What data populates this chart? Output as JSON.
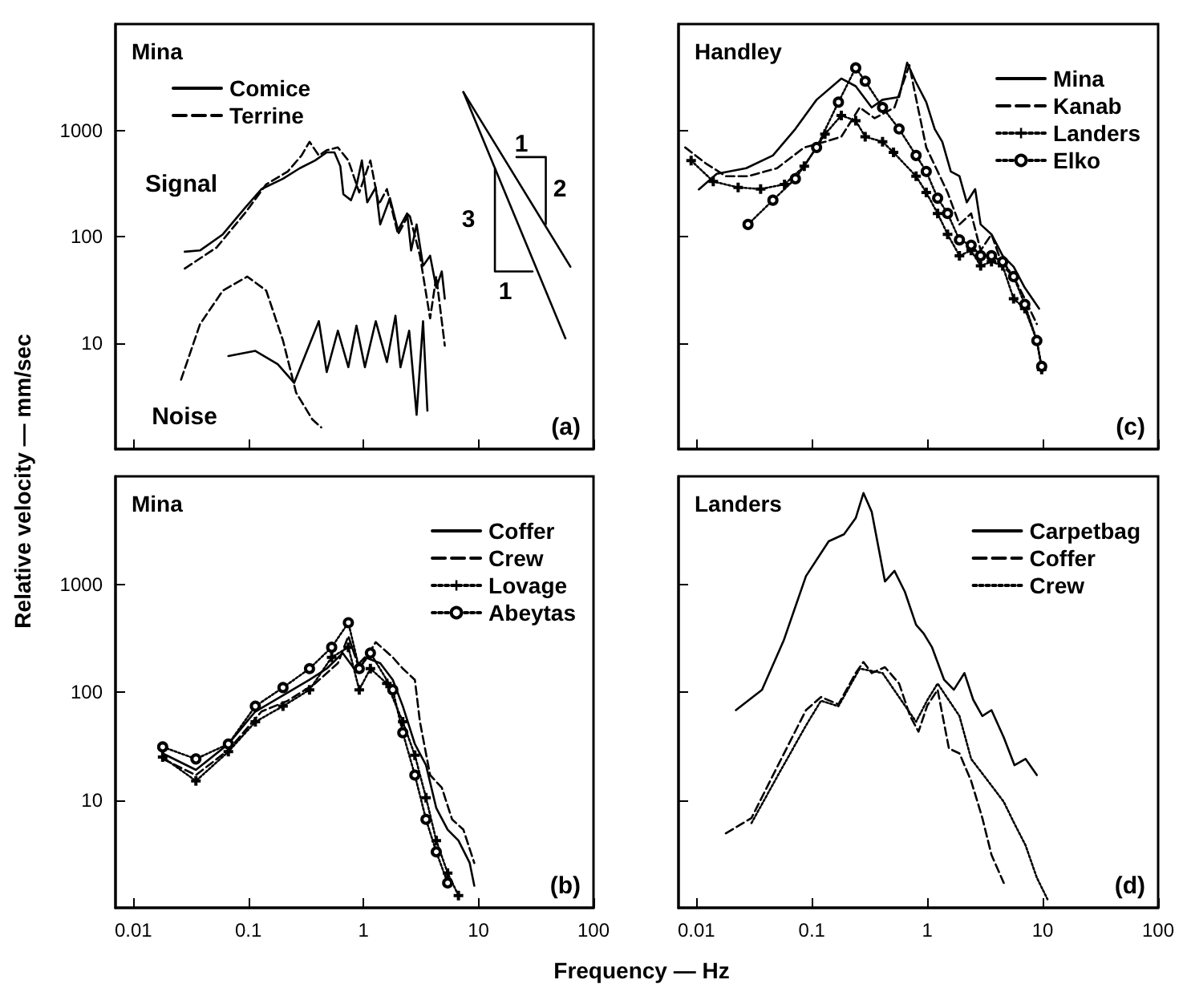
{
  "chart_data": [
    {
      "type": "line",
      "title": "Mina",
      "ylabel": "Relative velocity — mm/sec",
      "log": "xy",
      "grid": false,
      "legend": "top left",
      "tick_labels": "y",
      "xlim": [
        0.007,
        100
      ],
      "xticks": [
        0.01,
        0.1,
        1,
        10,
        100
      ],
      "ylim": [
        1,
        10000
      ],
      "yticks": [
        10,
        100,
        1000
      ],
      "annotations": [
        "Signal",
        "Noise",
        "(a)",
        "1",
        "2",
        "3",
        "1"
      ],
      "series": [
        {
          "name": "Comice",
          "color": "#000000",
          "line_style": "solid",
          "marker": "none",
          "x": [
            0.028,
            0.038,
            0.06,
            0.093,
            0.13,
            0.2,
            0.28,
            0.38,
            0.48,
            0.56,
            0.63,
            0.67,
            0.78,
            0.87,
            0.97,
            1.08,
            1.28,
            1.4,
            1.7,
            2.0,
            2.4,
            2.6,
            2.9,
            3.3,
            3.8,
            4.3,
            4.8,
            5.1
          ],
          "values": [
            72,
            74,
            105,
            185,
            280,
            350,
            440,
            520,
            620,
            620,
            460,
            250,
            220,
            300,
            520,
            210,
            290,
            130,
            230,
            115,
            165,
            74,
            130,
            53,
            66,
            33,
            47,
            26
          ]
        },
        {
          "name": "Terrine",
          "color": "#000000",
          "line_style": "dashed",
          "marker": "none",
          "x": [
            0.028,
            0.053,
            0.093,
            0.143,
            0.22,
            0.29,
            0.34,
            0.41,
            0.48,
            0.6,
            0.74,
            0.92,
            1.15,
            1.36,
            1.6,
            2.0,
            2.5,
            3.1,
            3.8,
            4.3,
            5.1
          ],
          "values": [
            50,
            79,
            165,
            310,
            410,
            580,
            780,
            580,
            650,
            690,
            520,
            260,
            520,
            200,
            280,
            105,
            165,
            66,
            17,
            42,
            9.4
          ]
        },
        {
          "color": "#000000",
          "line_style": "dashed",
          "marker": "none",
          "x": [
            0.026,
            0.038,
            0.06,
            0.098,
            0.143,
            0.2,
            0.26,
            0.36,
            0.43
          ],
          "values": [
            4.5,
            15,
            31,
            42,
            31,
            10.5,
            3.4,
            1.9,
            1.6
          ]
        },
        {
          "color": "#000000",
          "line_style": "solid",
          "marker": "none",
          "x": [
            0.067,
            0.115,
            0.18,
            0.25,
            0.31,
            0.41,
            0.48,
            0.6,
            0.74,
            0.87,
            1.03,
            1.28,
            1.6,
            1.9,
            2.1,
            2.5,
            2.9,
            3.3,
            3.6
          ],
          "values": [
            7.5,
            8.4,
            6.3,
            4.2,
            7.5,
            16,
            5.3,
            13,
            5.9,
            14.5,
            5.9,
            16,
            6.6,
            18,
            5.9,
            13,
            2.1,
            16,
            2.3
          ]
        },
        {
          "color": "#000000",
          "line_style": "solid",
          "marker": "none",
          "x": [
            7.4,
            63
          ],
          "values": [
            2290,
            52
          ]
        },
        {
          "color": "#000000",
          "line_style": "solid",
          "marker": "none",
          "x": [
            7.4,
            57
          ],
          "values": [
            2290,
            11
          ]
        },
        {
          "color": "#000000",
          "line_style": "solid",
          "marker": "none",
          "x": [
            13.9,
            13.9,
            29.5
          ],
          "values": [
            436,
            47,
            47
          ]
        },
        {
          "color": "#000000",
          "line_style": "solid",
          "marker": "none",
          "x": [
            21.4,
            38.5,
            38.5
          ],
          "values": [
            560,
            560,
            131
          ]
        }
      ]
    },
    {
      "type": "line",
      "title": "Handley",
      "log": "xy",
      "grid": false,
      "legend": "top right",
      "tick_labels": false,
      "xlim": [
        0.007,
        100
      ],
      "xticks": [
        0.01,
        0.1,
        1,
        10,
        100
      ],
      "ylim": [
        1,
        10000
      ],
      "yticks": [
        10,
        100,
        1000
      ],
      "annotations": [
        "(c)"
      ],
      "series": [
        {
          "name": "Mina",
          "color": "#000000",
          "line_style": "solid",
          "marker": "none",
          "x": [
            0.0105,
            0.015,
            0.027,
            0.046,
            0.072,
            0.11,
            0.18,
            0.24,
            0.33,
            0.41,
            0.57,
            0.67,
            0.79,
            0.98,
            1.16,
            1.35,
            1.6,
            1.9,
            2.2,
            2.6,
            2.9,
            3.6,
            4.5,
            5.6,
            7.0,
            9.3
          ],
          "values": [
            278,
            390,
            440,
            580,
            1030,
            1940,
            3070,
            2600,
            1640,
            1940,
            2060,
            4330,
            2900,
            1840,
            1030,
            780,
            410,
            370,
            210,
            280,
            130,
            105,
            66,
            52,
            33,
            21
          ]
        },
        {
          "name": "Kanab",
          "color": "#000000",
          "line_style": "dashed",
          "marker": "none",
          "x": [
            0.008,
            0.012,
            0.018,
            0.028,
            0.05,
            0.086,
            0.13,
            0.18,
            0.26,
            0.35,
            0.52,
            0.7,
            0.83,
            0.98,
            1.23,
            1.5,
            1.9,
            2.4,
            2.9,
            3.6,
            4.5,
            5.6,
            7.0,
            8.9
          ],
          "values": [
            690,
            490,
            370,
            370,
            440,
            690,
            780,
            870,
            1640,
            1300,
            1640,
            4100,
            1640,
            690,
            410,
            260,
            130,
            165,
            74,
            105,
            53,
            42,
            26,
            15
          ]
        },
        {
          "name": "Landers",
          "color": "#000000",
          "line_style": "dotted",
          "marker": "cross",
          "x": [
            0.009,
            0.014,
            0.023,
            0.036,
            0.058,
            0.086,
            0.13,
            0.18,
            0.24,
            0.29,
            0.41,
            0.51,
            0.8,
            0.98,
            1.23,
            1.5,
            1.9,
            2.4,
            2.9,
            3.6,
            4.5,
            5.6,
            7.0,
            8.9,
            9.8
          ],
          "values": [
            520,
            330,
            290,
            280,
            310,
            460,
            920,
            1380,
            1230,
            870,
            780,
            620,
            370,
            260,
            165,
            105,
            66,
            74,
            53,
            58,
            53,
            26,
            21,
            10.5,
            5.6
          ]
        },
        {
          "name": "Elko",
          "color": "#000000",
          "line_style": "dotted",
          "marker": "circle",
          "x": [
            0.028,
            0.046,
            0.072,
            0.11,
            0.17,
            0.24,
            0.29,
            0.41,
            0.57,
            0.8,
            0.98,
            1.23,
            1.5,
            1.9,
            2.4,
            2.9,
            3.6,
            4.5,
            5.6,
            7.0,
            8.9,
            9.8
          ],
          "values": [
            130,
            220,
            350,
            690,
            1840,
            3870,
            2900,
            1640,
            1030,
            580,
            410,
            230,
            165,
            93,
            83,
            66,
            66,
            58,
            42,
            23,
            10.5,
            6
          ]
        }
      ]
    },
    {
      "type": "line",
      "title": "Mina",
      "xlabel": "Frequency — Hz",
      "log": "xy",
      "grid": false,
      "legend": "top right",
      "xlim": [
        0.007,
        100
      ],
      "xticks": [
        0.01,
        0.1,
        1,
        10,
        100
      ],
      "ylim": [
        1,
        10000
      ],
      "yticks": [
        10,
        100,
        1000
      ],
      "annotations": [
        "(b)"
      ],
      "series": [
        {
          "name": "Coffer",
          "color": "#000000",
          "line_style": "solid",
          "marker": "none",
          "x": [
            0.018,
            0.035,
            0.067,
            0.115,
            0.2,
            0.34,
            0.48,
            0.66,
            0.83,
            1.03,
            1.4,
            1.8,
            2.2,
            2.8,
            3.5,
            4.3,
            5.4,
            6.7,
            8.4,
            9.2
          ],
          "values": [
            27,
            19,
            33,
            66,
            93,
            130,
            165,
            230,
            165,
            210,
            185,
            130,
            74,
            33,
            21,
            8.4,
            5.3,
            4.2,
            2.6,
            1.6
          ]
        },
        {
          "name": "Crew",
          "color": "#000000",
          "line_style": "dashed",
          "marker": "none",
          "x": [
            0.018,
            0.035,
            0.067,
            0.13,
            0.22,
            0.38,
            0.6,
            0.74,
            0.92,
            1.28,
            1.8,
            2.2,
            2.8,
            3.1,
            3.8,
            4.8,
            5.9,
            7.4,
            9.2
          ],
          "values": [
            24,
            17,
            29,
            66,
            83,
            120,
            185,
            330,
            165,
            290,
            210,
            165,
            130,
            53,
            17,
            13,
            6.6,
            5.3,
            2.6
          ]
        },
        {
          "name": "Lovage",
          "color": "#000000",
          "line_style": "dotted",
          "marker": "cross",
          "x": [
            0.018,
            0.035,
            0.067,
            0.115,
            0.2,
            0.34,
            0.53,
            0.74,
            0.92,
            1.15,
            1.6,
            2.2,
            2.8,
            3.5,
            4.3,
            5.4,
            6.7
          ],
          "values": [
            25,
            15,
            28,
            53,
            74,
            105,
            210,
            260,
            105,
            165,
            120,
            53,
            26,
            10.5,
            4.2,
            2.1,
            1.3
          ]
        },
        {
          "name": "Abeytas",
          "color": "#000000",
          "line_style": "dotted",
          "marker": "circle",
          "x": [
            0.018,
            0.035,
            0.067,
            0.115,
            0.2,
            0.34,
            0.53,
            0.74,
            0.92,
            1.15,
            1.8,
            2.2,
            2.8,
            3.5,
            4.3,
            5.4
          ],
          "values": [
            31,
            24,
            33,
            74,
            110,
            165,
            260,
            440,
            165,
            230,
            105,
            42,
            17,
            6.6,
            3.3,
            1.7
          ]
        }
      ]
    },
    {
      "type": "line",
      "title": "Landers",
      "log": "xy",
      "grid": false,
      "legend": "top right",
      "tick_labels": "x",
      "xlim": [
        0.007,
        100
      ],
      "xticks": [
        0.01,
        0.1,
        1,
        10,
        100
      ],
      "ylim": [
        1,
        10000
      ],
      "yticks": [
        10,
        100,
        1000
      ],
      "annotations": [
        "(d)"
      ],
      "series": [
        {
          "name": "Carpetbag",
          "color": "#000000",
          "line_style": "solid",
          "marker": "none",
          "x": [
            0.022,
            0.037,
            0.057,
            0.089,
            0.14,
            0.19,
            0.24,
            0.28,
            0.33,
            0.43,
            0.52,
            0.64,
            0.8,
            0.93,
            1.1,
            1.4,
            1.7,
            2.1,
            2.5,
            3.0,
            3.6,
            4.6,
            5.7,
            7.1,
            8.9
          ],
          "values": [
            68,
            105,
            300,
            1190,
            2500,
            2900,
            4100,
            7000,
            4700,
            1060,
            1330,
            850,
            420,
            350,
            260,
            130,
            105,
            150,
            85,
            60,
            68,
            38,
            21,
            24,
            17
          ]
        },
        {
          "name": "Coffer",
          "color": "#000000",
          "line_style": "dashed",
          "marker": "none",
          "x": [
            0.018,
            0.03,
            0.051,
            0.089,
            0.12,
            0.17,
            0.24,
            0.28,
            0.33,
            0.43,
            0.57,
            0.71,
            0.84,
            1.0,
            1.23,
            1.54,
            1.9,
            2.4,
            3.0,
            3.6,
            4.6
          ],
          "values": [
            4.9,
            6.8,
            21,
            68,
            90,
            77,
            150,
            190,
            150,
            170,
            120,
            60,
            43,
            75,
            105,
            30,
            27,
            15,
            6.8,
            3.1,
            1.7
          ]
        },
        {
          "name": "Crew",
          "color": "#000000",
          "line_style": "dotted",
          "marker": "none",
          "x": [
            0.03,
            0.051,
            0.089,
            0.12,
            0.17,
            0.26,
            0.41,
            0.64,
            0.8,
            1.0,
            1.23,
            1.9,
            2.4,
            3.6,
            4.6,
            5.7,
            7.1,
            8.9,
            11
          ],
          "values": [
            6.1,
            17,
            49,
            83,
            74,
            165,
            150,
            75,
            53,
            84,
            120,
            60,
            24,
            13.6,
            9.6,
            6,
            3.8,
            1.9,
            1.2
          ]
        }
      ]
    }
  ]
}
